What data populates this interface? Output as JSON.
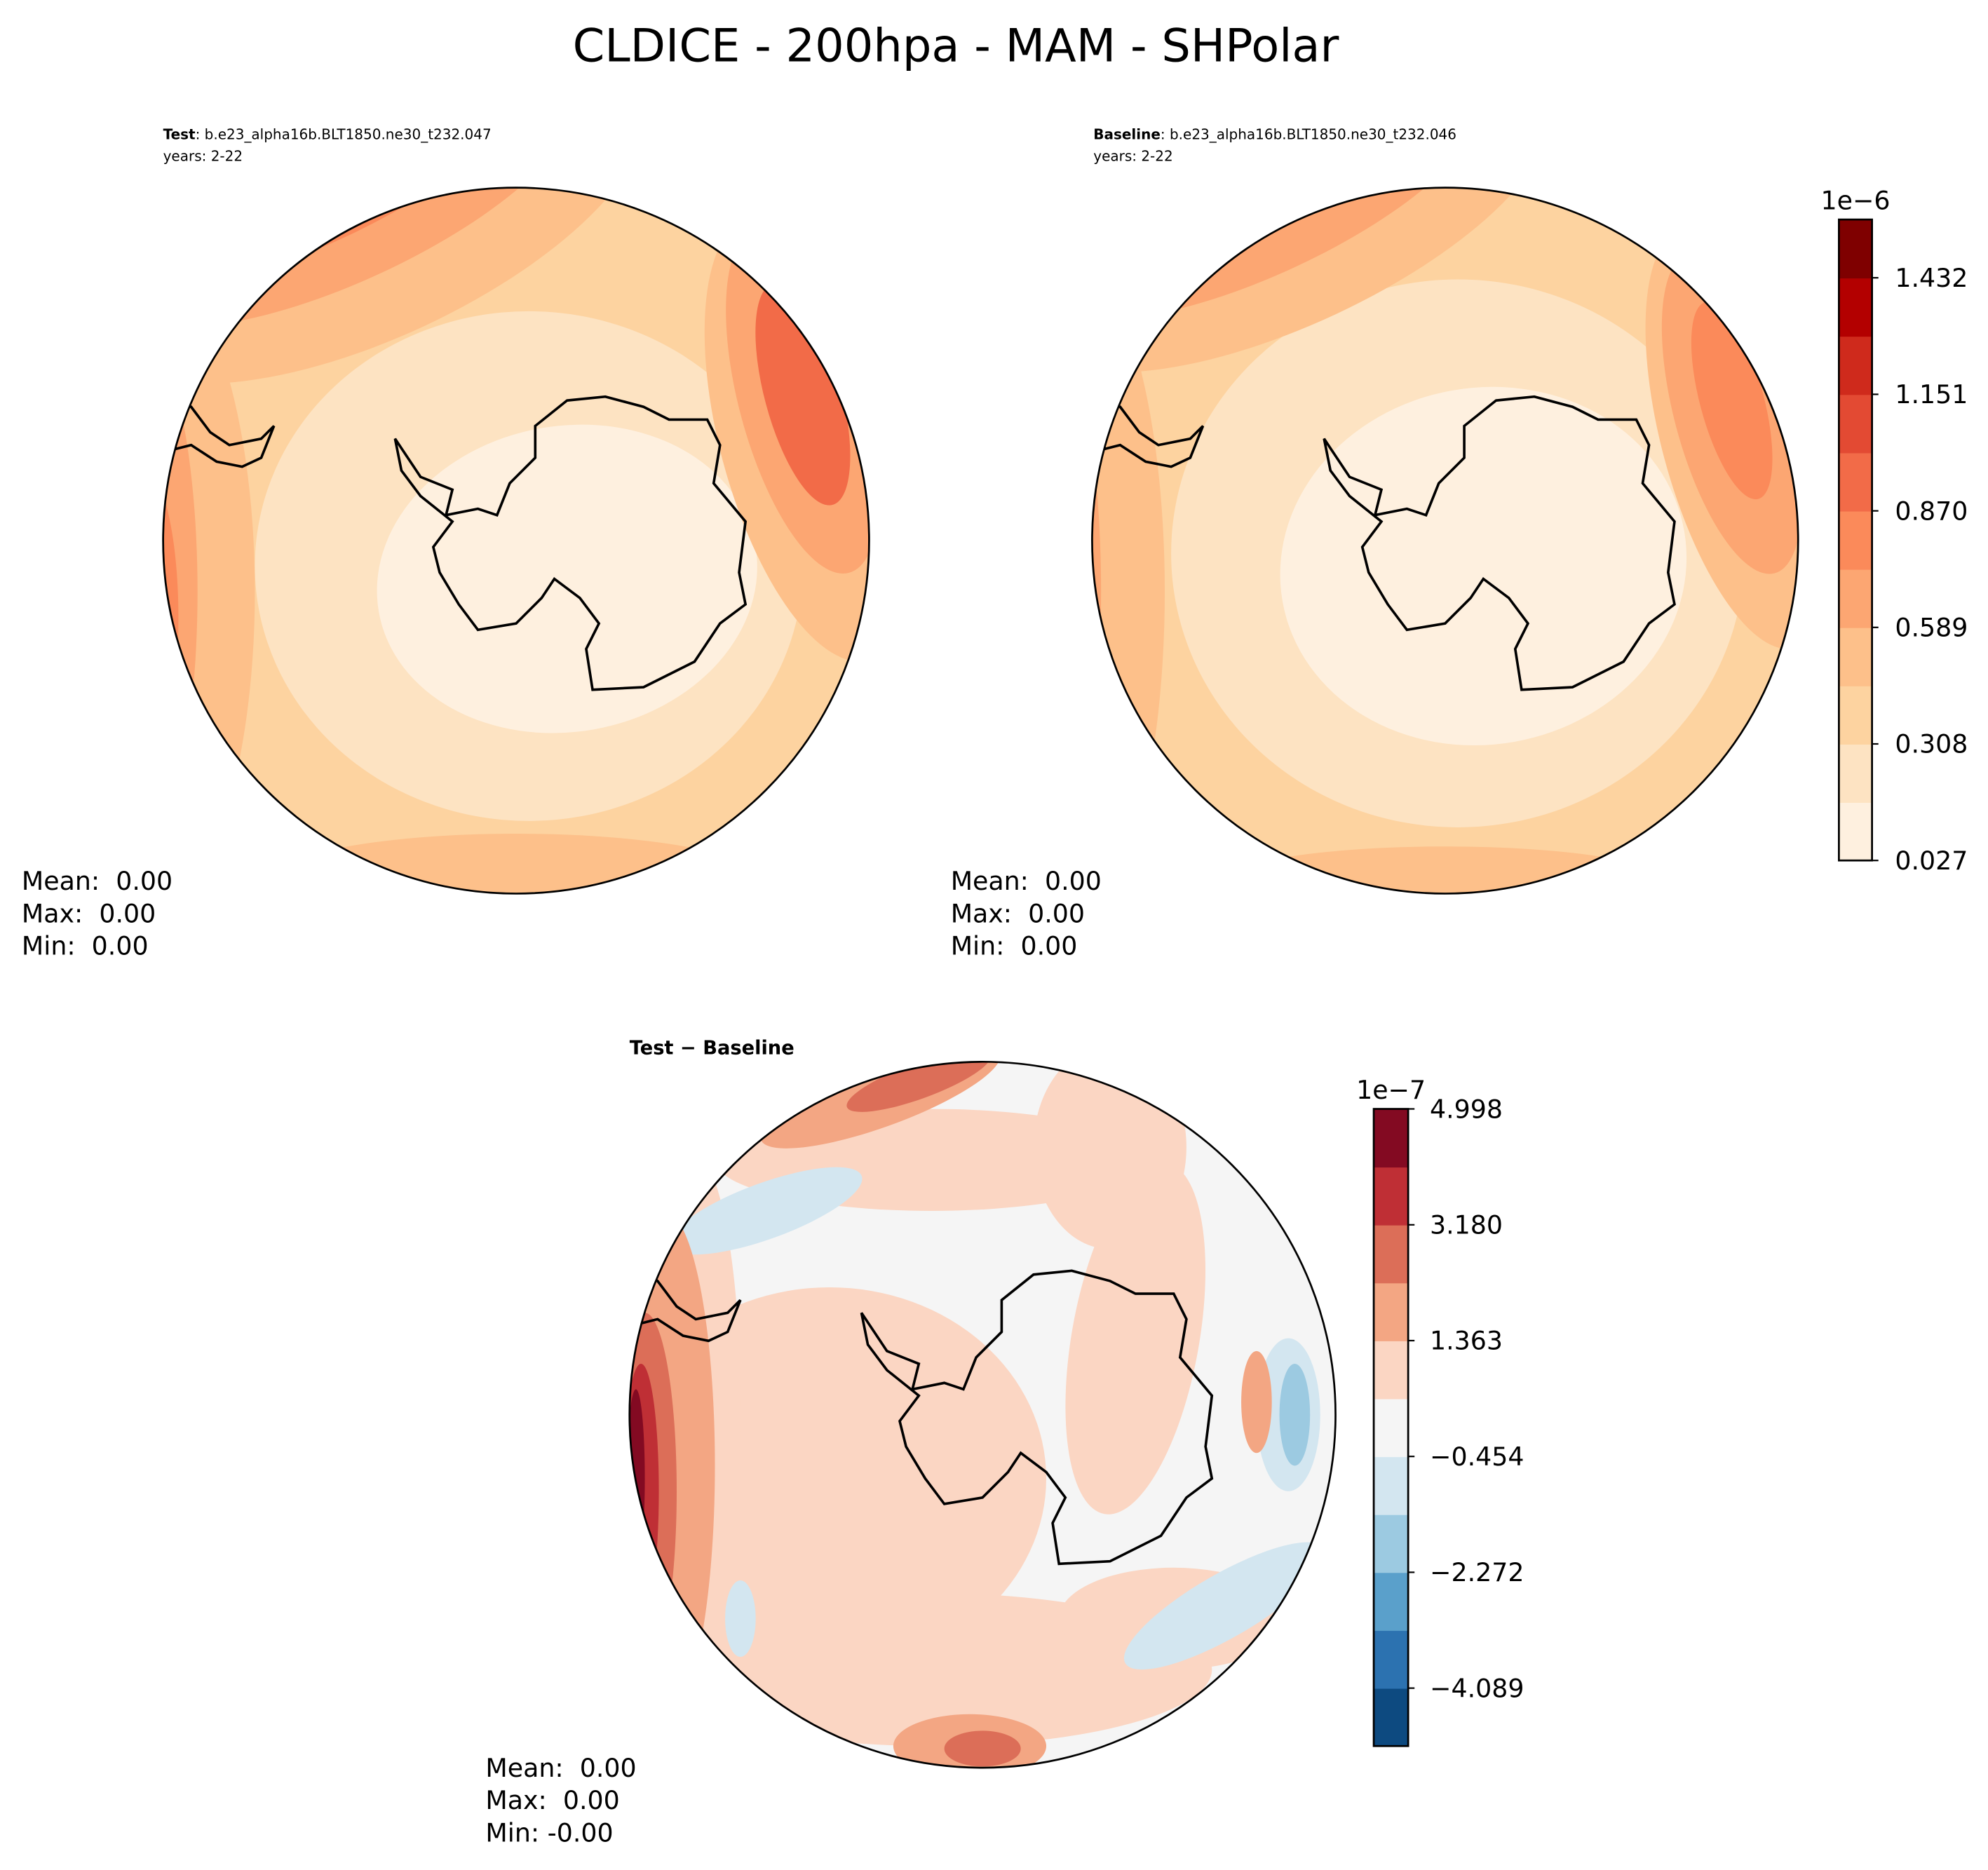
{
  "title": "CLDICE - 200hpa - MAM - SHPolar",
  "chart_data": [
    {
      "type": "contour",
      "name": "Test",
      "case": ": b.e23_alpha16b.BLT1850.ne30_t232.047",
      "years": "years: 2-22",
      "stats": [
        "Mean:  0.00",
        "Max:  0.00",
        "Min:  0.00"
      ]
    },
    {
      "type": "contour",
      "name": "Baseline",
      "case": ": b.e23_alpha16b.BLT1850.ne30_t232.046",
      "years": "years: 2-22",
      "stats": [
        "Mean:  0.00",
        "Max:  0.00",
        "Min:  0.00"
      ],
      "colorbar": {
        "scale_label": "1e−6",
        "lim": [
          0.027,
          1.5725
        ],
        "ticks": [
          0.027,
          0.308,
          0.589,
          {
            "value": 0.87,
            "label": "0.870"
          },
          1.151,
          1.432
        ],
        "colors": [
          "#fef0df",
          "#fde3c2",
          "#fdd3a0",
          "#fdc08a",
          "#fca672",
          "#fb8a5a",
          "#f26b48",
          "#e34a33",
          "#cf2a1c",
          "#b30000",
          "#7f0000"
        ]
      }
    },
    {
      "type": "contour",
      "name": "Test − Baseline",
      "stats": [
        "Mean:  0.00",
        "Max:  0.00",
        "Min: -0.00"
      ],
      "colorbar": {
        "scale_label": "1e−7",
        "lim": [
          -4.998,
          4.998
        ],
        "ticks": [
          {
            "value": -4.089,
            "label": "−4.089"
          },
          {
            "value": -2.272,
            "label": "−2.272"
          },
          {
            "value": -0.454,
            "label": "−0.454"
          },
          1.363,
          {
            "value": 3.18,
            "label": "3.180"
          },
          4.998
        ],
        "colors": [
          "#0d4a80",
          "#2c72b0",
          "#5aa0cb",
          "#9ccae1",
          "#d3e6f0",
          "#f5f5f5",
          "#fbd6c3",
          "#f3a683",
          "#dc6e58",
          "#bf2f35",
          "#830a22"
        ]
      }
    }
  ]
}
